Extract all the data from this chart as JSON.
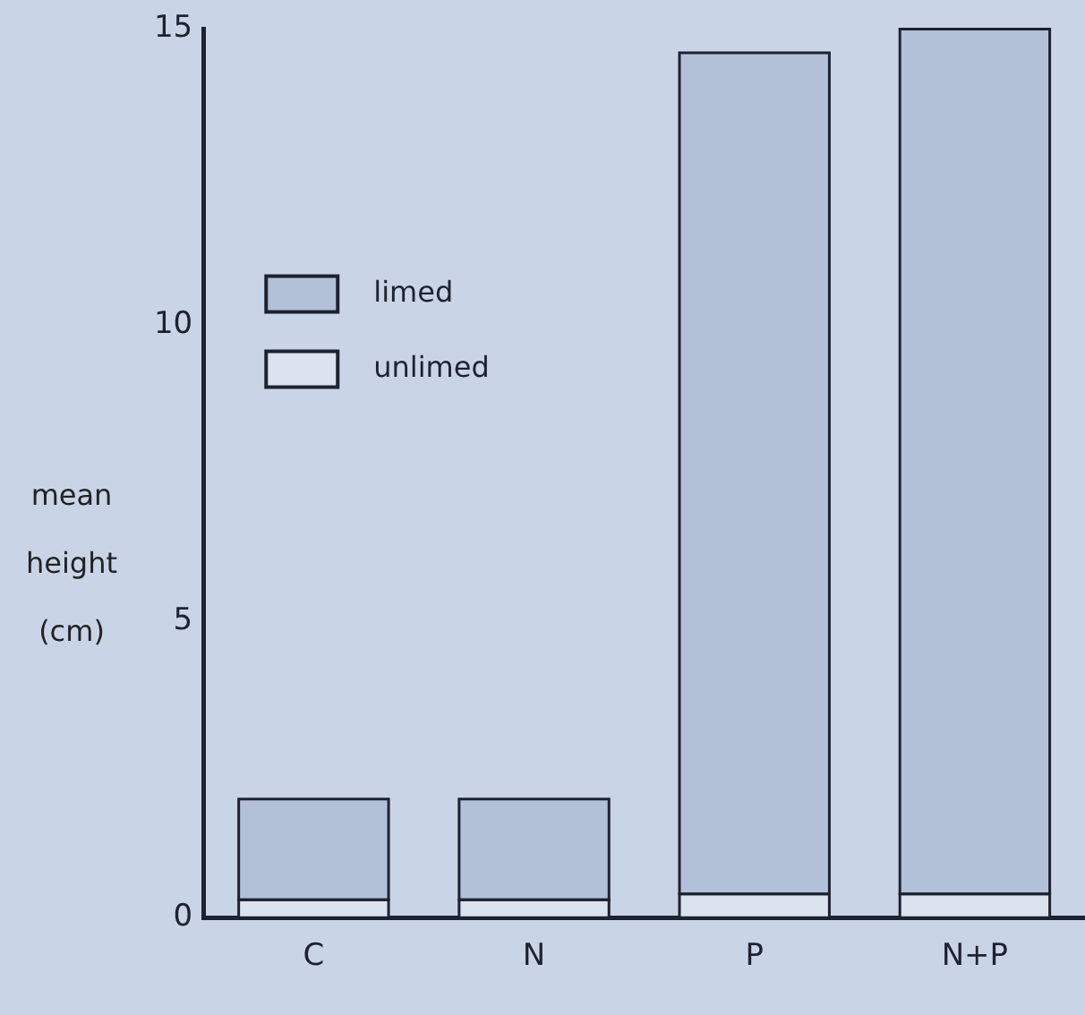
{
  "chart_data": {
    "type": "bar",
    "stacked": true,
    "ylabel": "mean height (cm)",
    "categories": [
      "C",
      "N",
      "P",
      "N+P"
    ],
    "series": [
      {
        "name": "unlimed",
        "color": "#dbe3ef",
        "values": [
          0.3,
          0.3,
          0.4,
          0.4
        ]
      },
      {
        "name": "limed",
        "color": "#b3c1d8",
        "values": [
          1.7,
          1.7,
          14.2,
          14.6
        ]
      }
    ],
    "ylim": [
      0,
      15
    ],
    "yticks": [
      0,
      5,
      10,
      15
    ],
    "grid": false,
    "legend": "top left"
  }
}
